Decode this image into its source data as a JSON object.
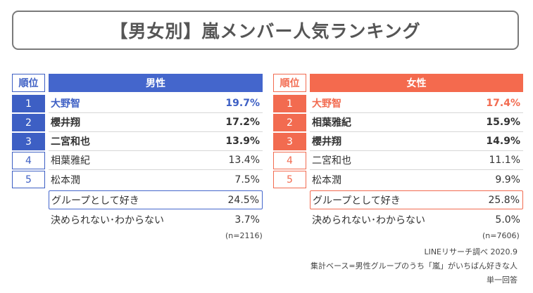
{
  "title": "【男女別】嵐メンバー人気ランキング",
  "chart_data": [
    {
      "type": "table",
      "rank_header": "順位",
      "series_name": "男性",
      "rows": [
        {
          "rank": "1",
          "name": "大野智",
          "value": "19.7%",
          "percent": 19.7
        },
        {
          "rank": "2",
          "name": "櫻井翔",
          "value": "17.2%",
          "percent": 17.2
        },
        {
          "rank": "3",
          "name": "二宮和也",
          "value": "13.9%",
          "percent": 13.9
        },
        {
          "rank": "4",
          "name": "相葉雅紀",
          "value": "13.4%",
          "percent": 13.4
        },
        {
          "rank": "5",
          "name": "松本潤",
          "value": "7.5%",
          "percent": 7.5
        }
      ],
      "group": {
        "name": "グループとして好き",
        "value": "24.5%",
        "percent": 24.5
      },
      "undecided": {
        "name": "決められない･わからない",
        "value": "3.7%",
        "percent": 3.7
      },
      "n": "(n=2116)"
    },
    {
      "type": "table",
      "rank_header": "順位",
      "series_name": "女性",
      "rows": [
        {
          "rank": "1",
          "name": "大野智",
          "value": "17.4%",
          "percent": 17.4
        },
        {
          "rank": "2",
          "name": "相葉雅紀",
          "value": "15.9%",
          "percent": 15.9
        },
        {
          "rank": "3",
          "name": "櫻井翔",
          "value": "14.9%",
          "percent": 14.9
        },
        {
          "rank": "4",
          "name": "二宮和也",
          "value": "11.1%",
          "percent": 11.1
        },
        {
          "rank": "5",
          "name": "松本潤",
          "value": "9.9%",
          "percent": 9.9
        }
      ],
      "group": {
        "name": "グループとして好き",
        "value": "25.8%",
        "percent": 25.8
      },
      "undecided": {
        "name": "決められない･わからない",
        "value": "5.0%",
        "percent": 5.0
      },
      "n": "(n=7606)"
    }
  ],
  "footnotes": {
    "source": "LINEリサーチ調べ 2020.9",
    "base": "集計ベース=男性グループのうち「嵐」がいちばん好きな人",
    "answer_type": "単一回答"
  },
  "colors": {
    "male_accent": "#4466cc",
    "female_accent": "#f46a4e",
    "text": "#333333"
  }
}
